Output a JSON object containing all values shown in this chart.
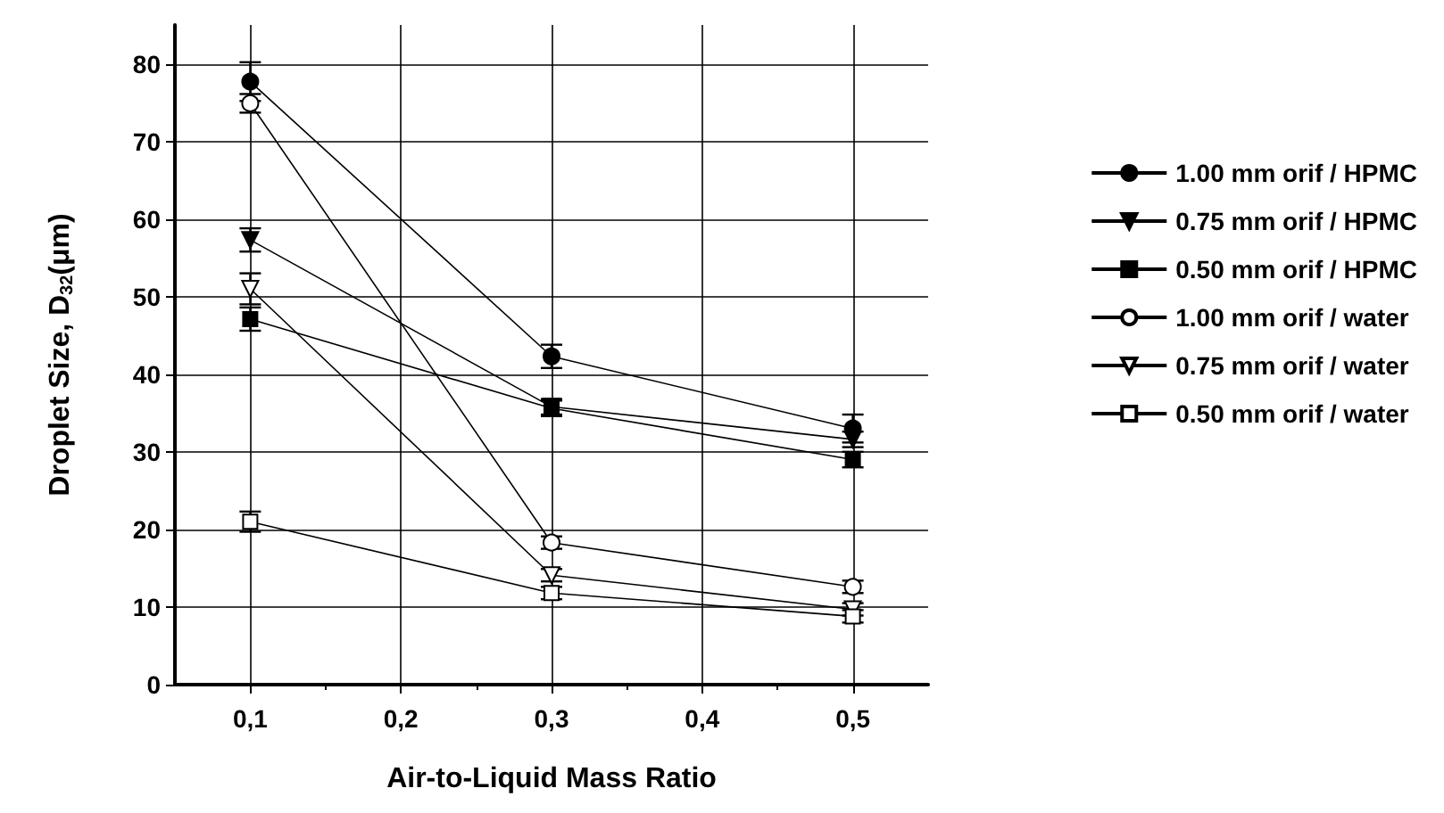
{
  "chart_data": {
    "type": "line",
    "xlabel": "Air-to-Liquid Mass Ratio",
    "ylabel": "Droplet Size, D$_{32}$(μm)",
    "xlim": [
      0.05,
      0.55
    ],
    "xticks": [
      {
        "value": 0.1,
        "label": "0,1"
      },
      {
        "value": 0.2,
        "label": "0,2"
      },
      {
        "value": 0.3,
        "label": "0,3"
      },
      {
        "value": 0.4,
        "label": "0,4"
      },
      {
        "value": 0.5,
        "label": "0,5"
      }
    ],
    "ylim": [
      0,
      85
    ],
    "yticks": [
      0,
      10,
      20,
      30,
      40,
      50,
      60,
      70,
      80
    ],
    "grid": true,
    "legend": "right",
    "line_style": "solid",
    "x": [
      0.1,
      0.3,
      0.5
    ],
    "series": [
      {
        "name": "1.00 mm orif / HPMC",
        "color": "#000000",
        "marker": "circle",
        "values": [
          77.7,
          42.3,
          33.0
        ],
        "errors": [
          2.5,
          1.5,
          1.8
        ]
      },
      {
        "name": "0.75 mm orif / HPMC",
        "color": "#000000",
        "marker": "triangle",
        "values": [
          57.3,
          35.8,
          31.6
        ],
        "errors": [
          1.5,
          1.0,
          1.0
        ]
      },
      {
        "name": "0.50 mm orif / HPMC",
        "color": "#000000",
        "marker": "square",
        "values": [
          47.1,
          35.6,
          29.0
        ],
        "errors": [
          1.5,
          1.0,
          1.0
        ]
      },
      {
        "name": "1.00 mm orif / water",
        "color": "#ffffff",
        "marker": "circle",
        "values": [
          74.9,
          18.3,
          12.6
        ],
        "errors": [
          1.2,
          0.8,
          0.8
        ]
      },
      {
        "name": "0.75 mm orif / water",
        "color": "#ffffff",
        "marker": "triangle",
        "values": [
          51.0,
          14.1,
          9.7
        ],
        "errors": [
          2.0,
          0.8,
          0.8
        ]
      },
      {
        "name": "0.50 mm orif / water",
        "color": "#ffffff",
        "marker": "square",
        "values": [
          21.0,
          11.8,
          8.8
        ],
        "errors": [
          1.3,
          0.8,
          0.8
        ]
      }
    ]
  }
}
